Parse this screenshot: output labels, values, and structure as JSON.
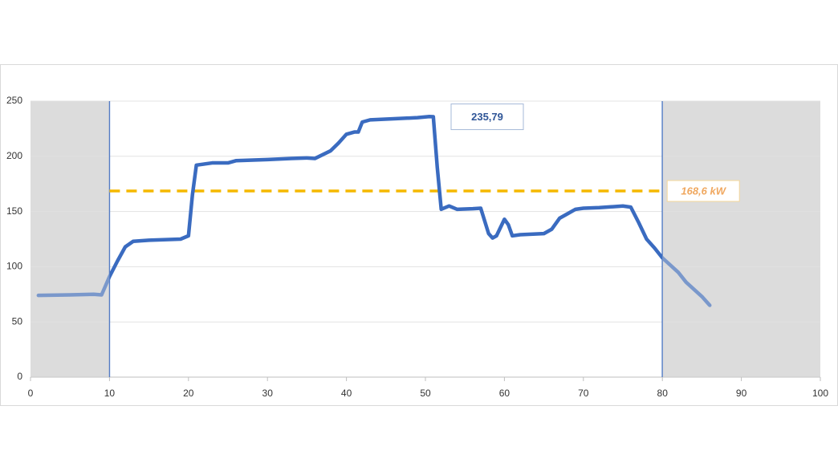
{
  "chart_data": {
    "type": "line",
    "series": [
      {
        "name": null,
        "color": "#3a6bc0",
        "x": [
          1,
          5,
          8,
          9,
          10,
          11,
          12,
          13,
          15,
          19,
          20,
          20.5,
          21,
          23,
          25,
          26,
          30,
          33,
          35,
          36,
          38,
          39,
          40,
          41,
          41.5,
          42,
          43,
          46,
          49,
          50.5,
          51,
          51.5,
          52,
          53,
          54,
          56,
          57,
          58,
          58.5,
          59,
          60,
          60.5,
          61,
          62,
          65,
          66,
          67,
          68,
          69,
          70,
          72,
          75,
          76,
          77,
          78,
          79,
          80,
          82,
          83,
          85,
          86
        ],
        "values": [
          74,
          74.5,
          75,
          74.5,
          91,
          105,
          118,
          123,
          124,
          125,
          128,
          165,
          192,
          194,
          194,
          196,
          197,
          198,
          198.5,
          198,
          205,
          212,
          220,
          222,
          222,
          231,
          233,
          234,
          235,
          236,
          235.8,
          190,
          152,
          155,
          152,
          152.5,
          153,
          130,
          126,
          128,
          143,
          138,
          128,
          129,
          130,
          134,
          144,
          148,
          152,
          153,
          153.5,
          155,
          154,
          140,
          125,
          117,
          108,
          95,
          86,
          73,
          65
        ]
      }
    ],
    "markers_x": [
      10,
      80
    ],
    "shade_color": "#dcdcdc",
    "marker_color": "#3a6bc0",
    "reference_line": {
      "value": 168.6,
      "label": "168,6 kW",
      "x_range": [
        10,
        80
      ],
      "color": "#f5b800"
    },
    "peak": {
      "value": 235.79,
      "label": "235,79"
    },
    "xlim": [
      0,
      100
    ],
    "xticks": [
      0,
      10,
      20,
      30,
      40,
      50,
      60,
      70,
      80,
      90,
      100
    ],
    "ylim": [
      0,
      250
    ],
    "yticks": [
      0,
      50,
      100,
      150,
      200,
      250
    ],
    "grid": true
  }
}
